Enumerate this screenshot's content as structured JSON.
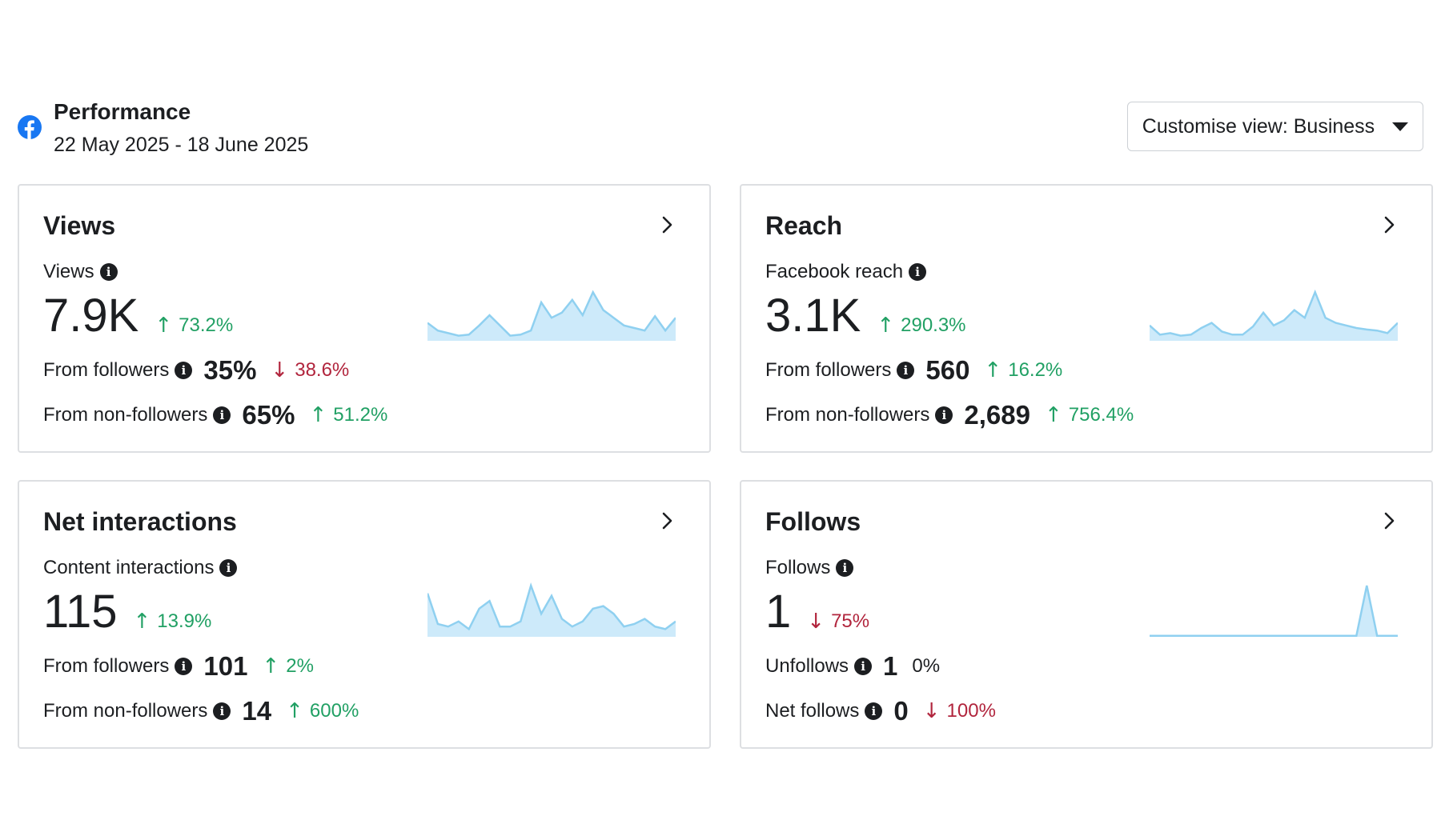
{
  "header": {
    "title": "Performance",
    "date_range": "22 May 2025 - 18 June 2025",
    "customise_label": "Customise view: Business",
    "brand_color": "#1877f2"
  },
  "colors": {
    "up": "#21a064",
    "down": "#b1253d",
    "spark_line": "#8fd0f0",
    "spark_fill": "#cdeafa"
  },
  "cards": [
    {
      "title": "Views",
      "metric_label": "Views",
      "value": "7.9K",
      "change": "73.2%",
      "change_dir": "up",
      "rows": [
        {
          "label": "From followers",
          "value": "35%",
          "change": "38.6%",
          "change_dir": "down"
        },
        {
          "label": "From non-followers",
          "value": "65%",
          "change": "51.2%",
          "change_dir": "up"
        }
      ],
      "spark": [
        0.35,
        0.2,
        0.15,
        0.1,
        0.12,
        0.3,
        0.5,
        0.3,
        0.1,
        0.12,
        0.2,
        0.75,
        0.45,
        0.55,
        0.8,
        0.5,
        0.95,
        0.6,
        0.45,
        0.3,
        0.25,
        0.2,
        0.48,
        0.2,
        0.45
      ]
    },
    {
      "title": "Reach",
      "metric_label": "Facebook reach",
      "value": "3.1K",
      "change": "290.3%",
      "change_dir": "up",
      "rows": [
        {
          "label": "From followers",
          "value": "560",
          "change": "16.2%",
          "change_dir": "up"
        },
        {
          "label": "From non-followers",
          "value": "2,689",
          "change": "756.4%",
          "change_dir": "up"
        }
      ],
      "spark": [
        0.3,
        0.12,
        0.15,
        0.1,
        0.12,
        0.25,
        0.35,
        0.18,
        0.12,
        0.12,
        0.28,
        0.55,
        0.3,
        0.4,
        0.6,
        0.45,
        0.95,
        0.45,
        0.35,
        0.3,
        0.25,
        0.22,
        0.2,
        0.15,
        0.35
      ]
    },
    {
      "title": "Net interactions",
      "metric_label": "Content interactions",
      "value": "115",
      "change": "13.9%",
      "change_dir": "up",
      "rows": [
        {
          "label": "From followers",
          "value": "101",
          "change": "2%",
          "change_dir": "up"
        },
        {
          "label": "From non-followers",
          "value": "14",
          "change": "600%",
          "change_dir": "up"
        }
      ],
      "spark": [
        0.85,
        0.25,
        0.2,
        0.3,
        0.15,
        0.55,
        0.7,
        0.2,
        0.2,
        0.3,
        1.0,
        0.45,
        0.8,
        0.35,
        0.2,
        0.3,
        0.55,
        0.6,
        0.45,
        0.2,
        0.25,
        0.35,
        0.2,
        0.15,
        0.3
      ]
    },
    {
      "title": "Follows",
      "metric_label": "Follows",
      "value": "1",
      "change": "75%",
      "change_dir": "down",
      "rows": [
        {
          "label": "Unfollows",
          "value": "1",
          "change": "0%",
          "change_dir": "neutral"
        },
        {
          "label": "Net follows",
          "value": "0",
          "change": "100%",
          "change_dir": "down"
        }
      ],
      "spark": [
        0.02,
        0.02,
        0.02,
        0.02,
        0.02,
        0.02,
        0.02,
        0.02,
        0.02,
        0.02,
        0.02,
        0.02,
        0.02,
        0.02,
        0.02,
        0.02,
        0.02,
        0.02,
        0.02,
        0.02,
        0.02,
        1.0,
        0.02,
        0.02,
        0.02
      ]
    }
  ]
}
